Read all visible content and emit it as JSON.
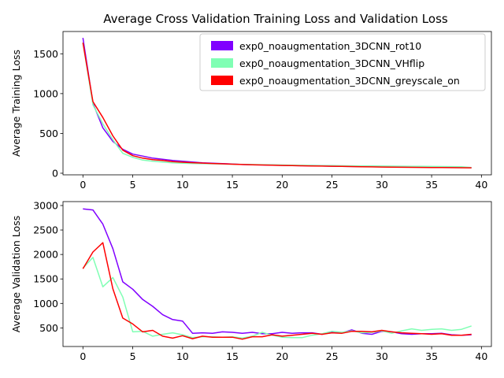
{
  "chart_data": [
    {
      "type": "line",
      "title": "Average Cross Validation Training Loss and Validation Loss",
      "xlabel": "",
      "ylabel": "Average Training Loss",
      "xlim": [
        -2,
        41
      ],
      "ylim": [
        -20,
        1780
      ],
      "xticks": [
        0,
        5,
        10,
        15,
        20,
        25,
        30,
        35,
        40
      ],
      "yticks": [
        0,
        500,
        1000,
        1500
      ],
      "grid": false,
      "legend_position": "top-right",
      "x": [
        0,
        1,
        2,
        3,
        4,
        5,
        6,
        7,
        8,
        9,
        10,
        11,
        12,
        13,
        14,
        15,
        16,
        17,
        18,
        19,
        20,
        21,
        22,
        23,
        24,
        25,
        26,
        27,
        28,
        29,
        30,
        31,
        32,
        33,
        34,
        35,
        36,
        37,
        38,
        39
      ],
      "series": [
        {
          "name": "exp0_noaugmentation_3DCNN_rot10",
          "color": "#8000ff",
          "values": [
            1700,
            880,
            570,
            400,
            300,
            240,
            215,
            190,
            175,
            160,
            150,
            140,
            130,
            125,
            120,
            115,
            110,
            107,
            105,
            102,
            100,
            97,
            95,
            93,
            91,
            89,
            87,
            85,
            84,
            83,
            82,
            80,
            79,
            78,
            77,
            76,
            75,
            74,
            73,
            72
          ]
        },
        {
          "name": "exp0_noaugmentation_3DCNN_VHflip",
          "color": "#80ffb4",
          "values": [
            1640,
            860,
            620,
            420,
            250,
            200,
            165,
            150,
            140,
            130,
            125,
            122,
            120,
            118,
            116,
            114,
            112,
            110,
            108,
            106,
            104,
            102,
            100,
            99,
            97,
            96,
            94,
            93,
            92,
            91,
            90,
            89,
            88,
            87,
            86,
            85,
            84,
            83,
            82,
            72
          ]
        },
        {
          "name": "exp0_noaugmentation_3DCNN_greyscale_on",
          "color": "#ff0000",
          "values": [
            1640,
            900,
            700,
            470,
            290,
            220,
            190,
            170,
            160,
            145,
            138,
            132,
            127,
            122,
            118,
            114,
            110,
            107,
            104,
            101,
            98,
            96,
            94,
            92,
            90,
            88,
            86,
            84,
            82,
            80,
            78,
            77,
            75,
            74,
            73,
            72,
            71,
            70,
            69,
            68
          ]
        }
      ]
    },
    {
      "type": "line",
      "title": "",
      "xlabel": "",
      "ylabel": "Average Validation Loss",
      "xlim": [
        -2,
        41
      ],
      "ylim": [
        120,
        3080
      ],
      "xticks": [
        0,
        5,
        10,
        15,
        20,
        25,
        30,
        35,
        40
      ],
      "yticks": [
        500,
        1000,
        1500,
        2000,
        2500,
        3000
      ],
      "grid": false,
      "x": [
        0,
        1,
        2,
        3,
        4,
        5,
        6,
        7,
        8,
        9,
        10,
        11,
        12,
        13,
        14,
        15,
        16,
        17,
        18,
        19,
        20,
        21,
        22,
        23,
        24,
        25,
        26,
        27,
        28,
        29,
        30,
        31,
        32,
        33,
        34,
        35,
        36,
        37,
        38,
        39
      ],
      "series": [
        {
          "name": "exp0_noaugmentation_3DCNN_rot10",
          "color": "#8000ff",
          "values": [
            2930,
            2910,
            2620,
            2120,
            1440,
            1290,
            1080,
            940,
            770,
            670,
            640,
            390,
            400,
            390,
            420,
            410,
            390,
            410,
            380,
            380,
            410,
            390,
            400,
            400,
            370,
            420,
            400,
            460,
            390,
            370,
            430,
            420,
            380,
            370,
            380,
            380,
            390,
            360,
            350,
            360
          ]
        },
        {
          "name": "exp0_noaugmentation_3DCNN_VHflip",
          "color": "#80ffb4",
          "values": [
            1720,
            1940,
            1340,
            1530,
            1130,
            420,
            430,
            330,
            370,
            400,
            360,
            300,
            320,
            320,
            310,
            320,
            290,
            330,
            410,
            350,
            310,
            300,
            300,
            350,
            380,
            430,
            410,
            440,
            400,
            410,
            440,
            390,
            440,
            480,
            450,
            470,
            480,
            450,
            470,
            540
          ]
        },
        {
          "name": "exp0_noaugmentation_3DCNN_greyscale_on",
          "color": "#ff0000",
          "values": [
            1710,
            2050,
            2240,
            1300,
            700,
            580,
            420,
            450,
            330,
            290,
            340,
            280,
            330,
            310,
            310,
            310,
            270,
            320,
            320,
            360,
            330,
            350,
            370,
            390,
            370,
            400,
            390,
            430,
            430,
            420,
            450,
            420,
            400,
            390,
            380,
            370,
            380,
            350,
            350,
            370
          ]
        }
      ]
    }
  ]
}
